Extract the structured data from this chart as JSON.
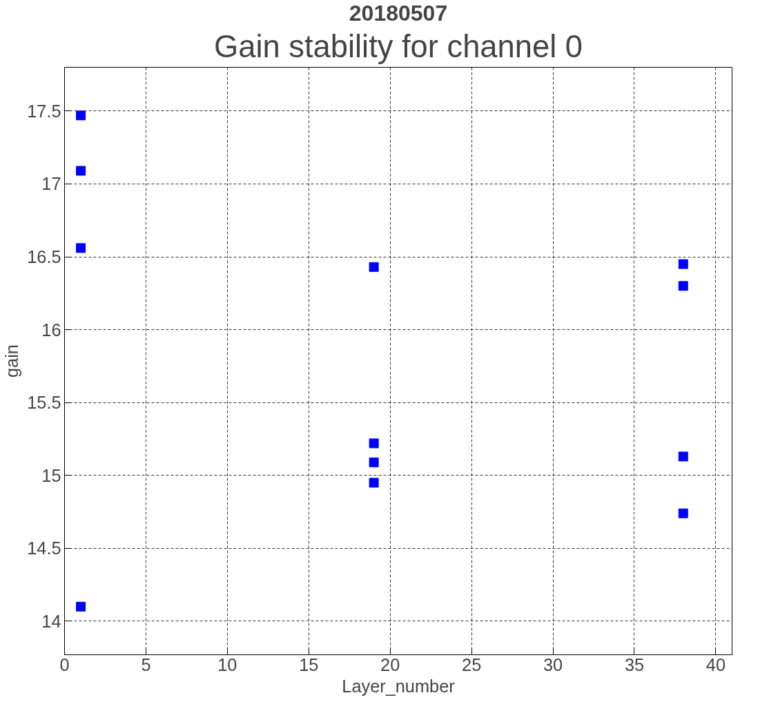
{
  "chart_data": {
    "type": "scatter",
    "title": "20180507",
    "subtitle": "Gain stability for channel 0",
    "xlabel": "Layer_number",
    "ylabel": "gain",
    "series": [
      {
        "color": "#0000ff",
        "x": [
          1,
          1,
          1,
          1,
          19,
          19,
          19,
          19,
          38,
          38,
          38,
          38
        ],
        "values": [
          17.47,
          17.09,
          16.56,
          14.1,
          16.43,
          15.22,
          15.09,
          14.95,
          16.45,
          16.3,
          15.13,
          14.74
        ]
      }
    ],
    "xlim": [
      0,
      41
    ],
    "ylim": [
      13.77,
      17.8
    ],
    "xticks": [
      0,
      5,
      10,
      15,
      20,
      25,
      30,
      35,
      40
    ],
    "yticks": [
      14,
      14.5,
      15,
      15.5,
      16,
      16.5,
      17,
      17.5
    ],
    "grid": true,
    "marker": "square"
  }
}
